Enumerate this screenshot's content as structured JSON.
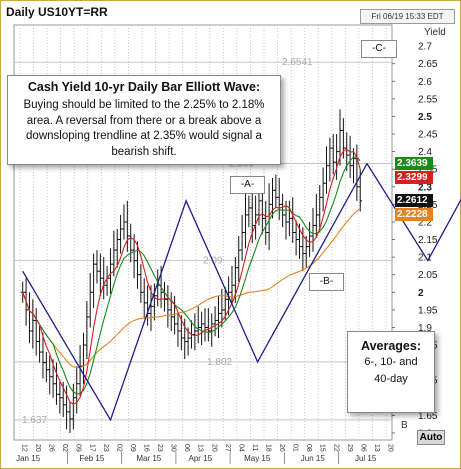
{
  "header": {
    "title": "Daily US10YT=RR",
    "timestamp": "Fri 06/19 15:33 EDT",
    "yield_label": "Yield"
  },
  "callout": {
    "title": "Cash Yield 10-yr Daily Bar Elliott Wave:",
    "body": "Buying should be limited to the 2.25% to 2.18% area. A reversal from there or a break above a downsloping trendline at 2.35% would signal  a bearish shift."
  },
  "wave_labels": {
    "a": "-A-",
    "b": "-B-",
    "c": "-C-"
  },
  "averages": {
    "title": "Averages:",
    "line1": "6-, 10- and",
    "line2": "40-day"
  },
  "price_tags": [
    {
      "value": "2.3639",
      "color": "#1a8a1a"
    },
    {
      "value": "2.3299",
      "color": "#d42020"
    },
    {
      "value": "2.2612",
      "color": "#111111"
    },
    {
      "value": "2.2228",
      "color": "#e8821e"
    }
  ],
  "buttons": {
    "auto": "Auto",
    "b_mark": "B",
    "s_mark": "S"
  },
  "colors": {
    "bars": "#111111",
    "ma6": "#d42020",
    "ma10": "#1a8a1a",
    "ma40": "#e8821e",
    "wave": "#1c1c8c",
    "grid": "#bbbbbb"
  },
  "chart_data": {
    "type": "line",
    "title": "Daily US10YT=RR",
    "ylabel": "Yield",
    "ylim": [
      1.58,
      2.76
    ],
    "y_ticks": [
      "2.7",
      "2.65",
      "2.6",
      "2.55",
      "2.5",
      "2.45",
      "2.4",
      "2.35",
      "2.3",
      "2.25",
      "2.2",
      "2.15",
      "2.1",
      "2.05",
      "2",
      "1.95",
      "1.9",
      "1.85",
      "1.8",
      "1.75",
      "1.7",
      "1.65",
      "1.6"
    ],
    "x_day_ticks": [
      "12",
      "20",
      "26",
      "02",
      "09",
      "17",
      "23",
      "02",
      "09",
      "16",
      "23",
      "30",
      "06",
      "13",
      "20",
      "27",
      "04",
      "11",
      "18",
      "26",
      "01",
      "08",
      "15",
      "22",
      "29",
      "06",
      "13",
      "20"
    ],
    "x_month_labels": [
      "Jan 15",
      "Feb 15",
      "Mar 15",
      "Apr 15",
      "May 15",
      "Jun 15",
      "Jul 15"
    ],
    "reference_levels": [
      {
        "label": "2.6541",
        "value": 2.6541
      },
      {
        "label": "2.366",
        "value": 2.366
      },
      {
        "label": "2.09",
        "value": 2.09
      },
      {
        "label": "1.802",
        "value": 1.802
      },
      {
        "label": "1.637",
        "value": 1.637
      }
    ],
    "series": [
      {
        "name": "Elliott Wave",
        "x": [
          0.0,
          6.5,
          12.1,
          17.4,
          25.5,
          30.0,
          38.0
        ],
        "y": [
          2.06,
          1.637,
          2.26,
          1.802,
          2.366,
          2.09,
          2.654
        ]
      }
    ],
    "price_bars_close": [
      2.0,
      1.95,
      1.89,
      1.92,
      1.86,
      1.83,
      1.8,
      1.78,
      1.76,
      1.74,
      1.71,
      1.7,
      1.68,
      1.66,
      1.64,
      1.7,
      1.74,
      1.79,
      1.85,
      1.93,
      2.0,
      2.08,
      2.06,
      2.04,
      2.02,
      2.04,
      2.08,
      2.12,
      2.15,
      2.18,
      2.2,
      2.16,
      2.12,
      2.09,
      2.05,
      2.0,
      1.97,
      1.94,
      1.96,
      1.99,
      2.02,
      2.0,
      1.98,
      1.95,
      1.93,
      1.91,
      1.89,
      1.87,
      1.86,
      1.87,
      1.88,
      1.89,
      1.9,
      1.91,
      1.9,
      1.89,
      1.91,
      1.92,
      1.94,
      1.95,
      1.98,
      2.0,
      2.02,
      2.07,
      2.12,
      2.17,
      2.22,
      2.24,
      2.19,
      2.22,
      2.26,
      2.21,
      2.17,
      2.25,
      2.29,
      2.27,
      2.25,
      2.22,
      2.2,
      2.21,
      2.17,
      2.15,
      2.13,
      2.11,
      2.13,
      2.16,
      2.19,
      2.22,
      2.27,
      2.31,
      2.36,
      2.41,
      2.37,
      2.4,
      2.46,
      2.41,
      2.39,
      2.36,
      2.38,
      2.3,
      2.26
    ]
  }
}
